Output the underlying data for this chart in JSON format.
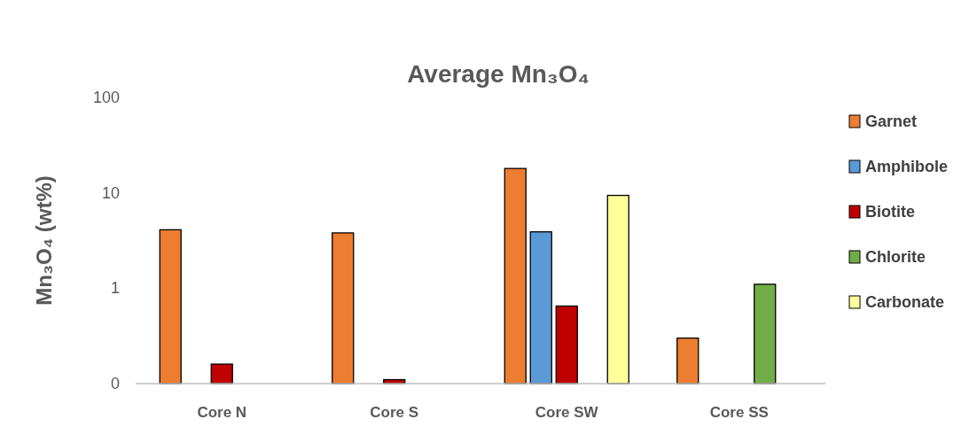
{
  "chart_data": {
    "type": "bar",
    "title": "Average Mn₃O₄",
    "ylabel": "Mn₃O₄ (wt%)",
    "categories": [
      "Core N",
      "Core S",
      "Core SW",
      "Core SS"
    ],
    "log": true,
    "ylim": [
      0.1,
      100
    ],
    "yticks": [
      {
        "value": 0.1,
        "label": "0"
      },
      1,
      10,
      100
    ],
    "grid": false,
    "legend": "right",
    "series": [
      {
        "name": "Garnet",
        "color": "#ed7d31",
        "values": [
          4.1,
          3.8,
          18,
          0.3
        ]
      },
      {
        "name": "Amphibole",
        "color": "#5b9bd5",
        "values": [
          null,
          null,
          3.9,
          null
        ]
      },
      {
        "name": "Biotite",
        "color": "#c00000",
        "values": [
          0.16,
          0.11,
          0.65,
          null
        ]
      },
      {
        "name": "Chlorite",
        "color": "#70ad47",
        "values": [
          null,
          null,
          null,
          1.1
        ]
      },
      {
        "name": "Carbonate",
        "color": "#ffff99",
        "values": [
          null,
          null,
          9.4,
          null
        ]
      }
    ]
  }
}
